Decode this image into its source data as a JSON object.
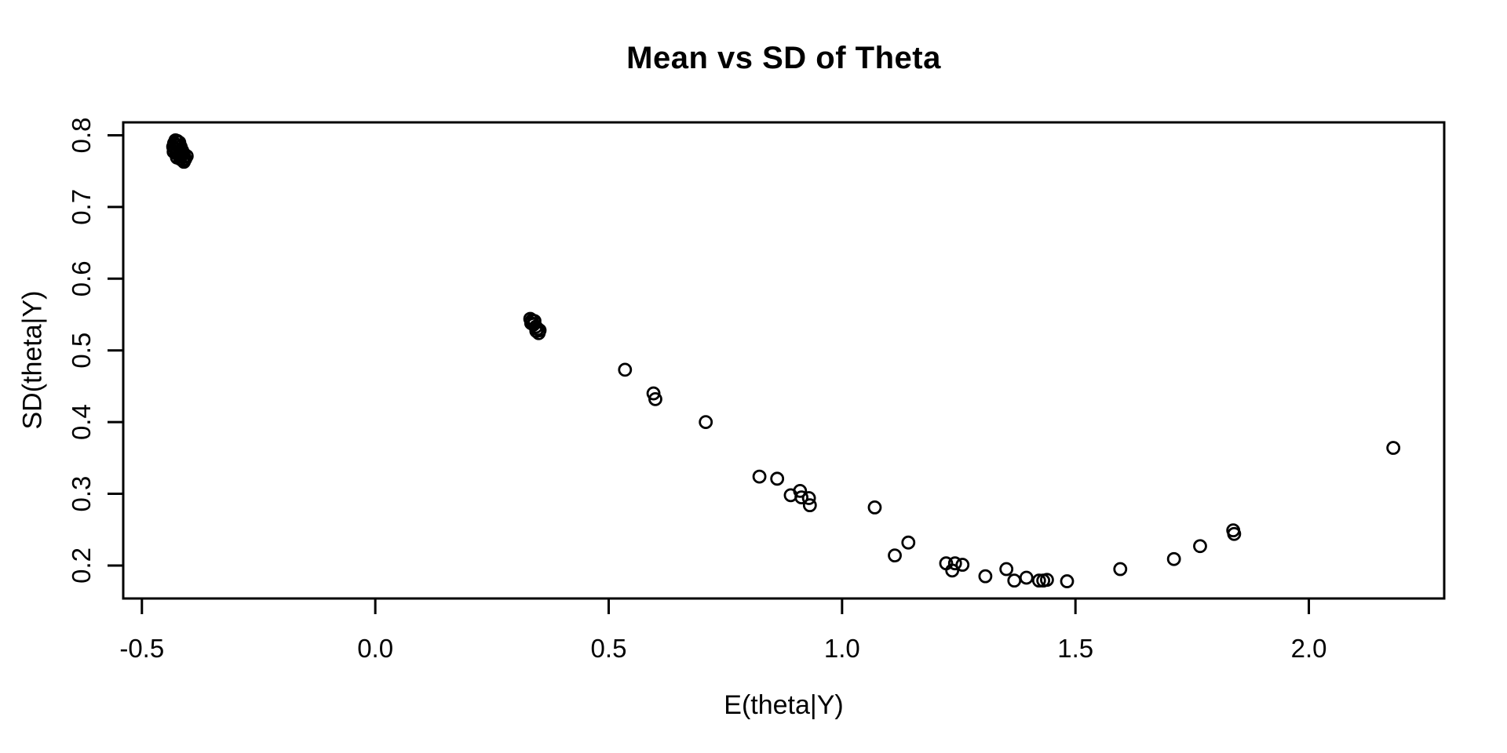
{
  "chart_data": {
    "type": "scatter",
    "title": "Mean vs SD of Theta",
    "xlabel": "E(theta|Y)",
    "ylabel": "SD(theta|Y)",
    "xlim": [
      -0.54,
      2.29
    ],
    "ylim": [
      0.154,
      0.818
    ],
    "xticks": [
      -0.5,
      0.0,
      0.5,
      1.0,
      1.5,
      2.0
    ],
    "xtick_labels": [
      "-0.5",
      "0.0",
      "0.5",
      "1.0",
      "1.5",
      "2.0"
    ],
    "yticks": [
      0.2,
      0.3,
      0.4,
      0.5,
      0.6,
      0.7,
      0.8
    ],
    "ytick_labels": [
      "0.2",
      "0.3",
      "0.4",
      "0.5",
      "0.6",
      "0.7",
      "0.8"
    ],
    "grid": false,
    "legend": null,
    "marker": "open-circle",
    "marker_color": "#000000",
    "background_color": "#ffffff",
    "points": [
      [
        -0.428,
        0.793
      ],
      [
        -0.424,
        0.792
      ],
      [
        -0.431,
        0.789
      ],
      [
        -0.42,
        0.79
      ],
      [
        -0.426,
        0.787
      ],
      [
        -0.433,
        0.784
      ],
      [
        -0.422,
        0.786
      ],
      [
        -0.417,
        0.784
      ],
      [
        -0.429,
        0.781
      ],
      [
        -0.424,
        0.78
      ],
      [
        -0.419,
        0.778
      ],
      [
        -0.432,
        0.777
      ],
      [
        -0.427,
        0.775
      ],
      [
        -0.414,
        0.779
      ],
      [
        -0.421,
        0.773
      ],
      [
        -0.416,
        0.772
      ],
      [
        -0.425,
        0.769
      ],
      [
        -0.411,
        0.775
      ],
      [
        -0.418,
        0.767
      ],
      [
        -0.409,
        0.77
      ],
      [
        -0.413,
        0.765
      ],
      [
        -0.407,
        0.767
      ],
      [
        -0.404,
        0.771
      ],
      [
        -0.41,
        0.763
      ],
      [
        0.332,
        0.544
      ],
      [
        0.336,
        0.542
      ],
      [
        0.341,
        0.541
      ],
      [
        0.334,
        0.538
      ],
      [
        0.339,
        0.536
      ],
      [
        0.344,
        0.533
      ],
      [
        0.348,
        0.53
      ],
      [
        0.352,
        0.528
      ],
      [
        0.35,
        0.524
      ],
      [
        0.345,
        0.527
      ],
      [
        0.535,
        0.473
      ],
      [
        0.596,
        0.44
      ],
      [
        0.6,
        0.432
      ],
      [
        0.708,
        0.4
      ],
      [
        0.823,
        0.324
      ],
      [
        0.861,
        0.321
      ],
      [
        0.89,
        0.298
      ],
      [
        0.91,
        0.304
      ],
      [
        0.913,
        0.295
      ],
      [
        0.929,
        0.294
      ],
      [
        0.931,
        0.284
      ],
      [
        1.07,
        0.281
      ],
      [
        1.113,
        0.214
      ],
      [
        1.142,
        0.232
      ],
      [
        1.223,
        0.203
      ],
      [
        1.236,
        0.193
      ],
      [
        1.242,
        0.203
      ],
      [
        1.258,
        0.201
      ],
      [
        1.307,
        0.185
      ],
      [
        1.352,
        0.195
      ],
      [
        1.369,
        0.179
      ],
      [
        1.395,
        0.183
      ],
      [
        1.422,
        0.179
      ],
      [
        1.431,
        0.179
      ],
      [
        1.439,
        0.18
      ],
      [
        1.482,
        0.178
      ],
      [
        1.596,
        0.195
      ],
      [
        1.711,
        0.209
      ],
      [
        1.767,
        0.227
      ],
      [
        1.838,
        0.249
      ],
      [
        1.84,
        0.244
      ],
      [
        2.181,
        0.364
      ]
    ]
  }
}
